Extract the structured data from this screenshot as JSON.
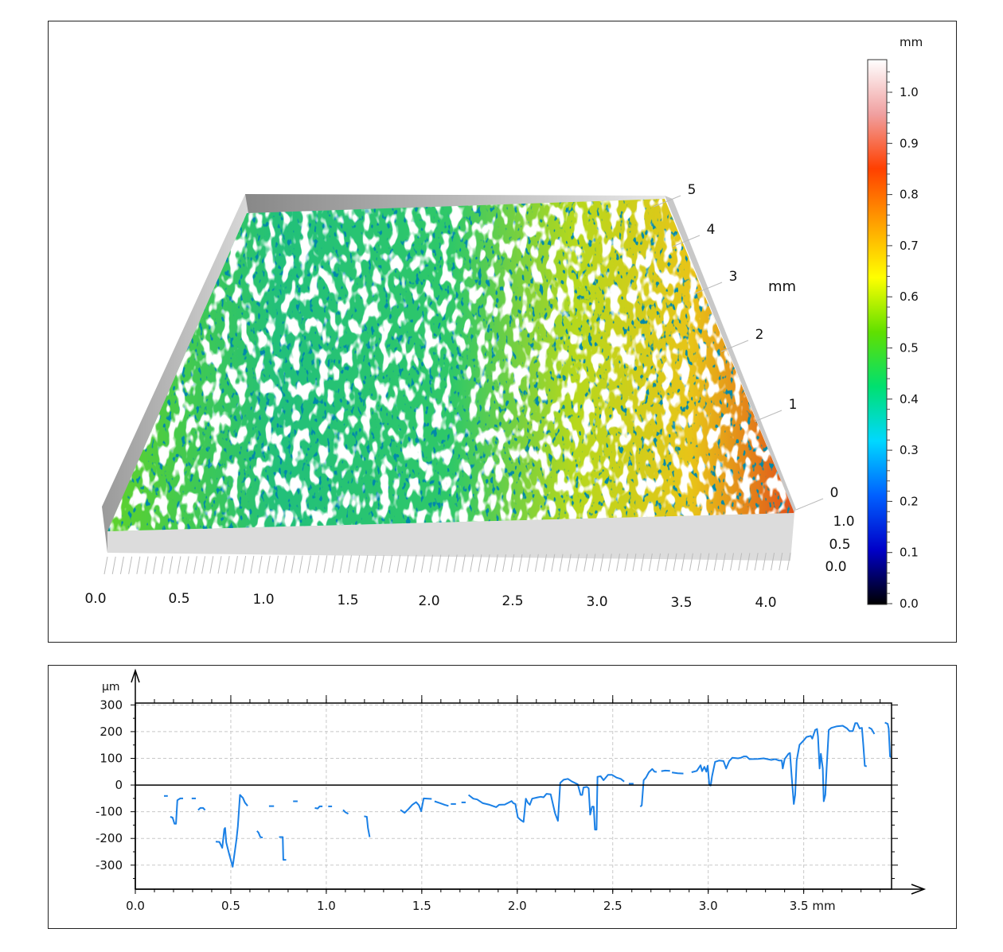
{
  "colors": {
    "profile_line": "#1a80e6",
    "grid": "#c8c8c8",
    "axis": "#000000"
  },
  "chart_data": [
    {
      "type": "surface",
      "x_ticks": [
        "0.0",
        "0.5",
        "1.0",
        "1.5",
        "2.0",
        "2.5",
        "3.0",
        "3.5",
        "4.0"
      ],
      "y_ticks": [
        "0",
        "1",
        "2",
        "3",
        "4",
        "5"
      ],
      "y_unit": "mm",
      "z_ticks": [
        "0.0",
        "0.5",
        "1.0"
      ],
      "colorbar": {
        "unit": "mm",
        "range": [
          0.0,
          1.05
        ],
        "ticks": [
          "0.0",
          "0.1",
          "0.2",
          "0.3",
          "0.4",
          "0.5",
          "0.6",
          "0.7",
          "0.8",
          "0.9",
          "1.0"
        ],
        "colormap": [
          "#000000",
          "#0000c8",
          "#0060ff",
          "#00d8ff",
          "#00e070",
          "#60e000",
          "#ffff00",
          "#ffa000",
          "#ff4000",
          "#f0a0a0",
          "#ffffff"
        ]
      }
    },
    {
      "type": "line",
      "y_unit": "µm",
      "x_unit": "mm",
      "xlim": [
        0,
        3.96
      ],
      "ylim": [
        -390,
        307
      ],
      "grid": true,
      "x_ticks": [
        "0.0",
        "0.5",
        "1.0",
        "1.5",
        "2.0",
        "2.5",
        "3.0",
        "3.5 mm"
      ],
      "y_ticks": [
        "300",
        "200",
        "100",
        "0",
        "-100",
        "-200",
        "-300"
      ],
      "segments": [
        [
          [
            0.15,
            -41
          ],
          [
            0.17,
            -41
          ]
        ],
        [
          [
            0.183,
            -119
          ],
          [
            0.195,
            -122
          ],
          [
            0.205,
            -145
          ],
          [
            0.213,
            -145
          ],
          [
            0.22,
            -57
          ],
          [
            0.235,
            -50
          ],
          [
            0.25,
            -50
          ]
        ],
        [
          [
            0.295,
            -50
          ],
          [
            0.317,
            -50
          ]
        ],
        [
          [
            0.329,
            -94
          ],
          [
            0.34,
            -86
          ],
          [
            0.355,
            -86
          ],
          [
            0.365,
            -94
          ]
        ],
        [
          [
            0.421,
            -212
          ],
          [
            0.44,
            -213
          ],
          [
            0.455,
            -235
          ],
          [
            0.466,
            -165
          ],
          [
            0.47,
            -161
          ],
          [
            0.476,
            -215
          ],
          [
            0.49,
            -255
          ],
          [
            0.51,
            -306
          ],
          [
            0.52,
            -255
          ],
          [
            0.53,
            -203
          ],
          [
            0.537,
            -155
          ],
          [
            0.548,
            -37
          ],
          [
            0.556,
            -43
          ],
          [
            0.563,
            -48
          ],
          [
            0.574,
            -66
          ],
          [
            0.588,
            -78
          ]
        ],
        [
          [
            0.637,
            -172
          ],
          [
            0.645,
            -178
          ],
          [
            0.655,
            -195
          ],
          [
            0.667,
            -197
          ]
        ],
        [
          [
            0.7,
            -79
          ],
          [
            0.726,
            -79
          ]
        ],
        [
          [
            0.753,
            -195
          ],
          [
            0.772,
            -195
          ],
          [
            0.775,
            -280
          ],
          [
            0.79,
            -280
          ]
        ],
        [
          [
            0.826,
            -61
          ],
          [
            0.85,
            -61
          ]
        ],
        [
          [
            0.94,
            -86
          ],
          [
            0.955,
            -88
          ],
          [
            0.965,
            -80
          ],
          [
            0.98,
            -80
          ]
        ],
        [
          [
            1.01,
            -80
          ],
          [
            1.03,
            -80
          ]
        ],
        [
          [
            1.088,
            -93
          ],
          [
            1.1,
            -102
          ],
          [
            1.115,
            -108
          ]
        ],
        [
          [
            1.198,
            -117
          ],
          [
            1.212,
            -119
          ],
          [
            1.218,
            -160
          ],
          [
            1.227,
            -195
          ]
        ],
        [
          [
            1.388,
            -93
          ],
          [
            1.41,
            -104
          ],
          [
            1.43,
            -90
          ],
          [
            1.45,
            -74
          ],
          [
            1.47,
            -64
          ],
          [
            1.485,
            -76
          ],
          [
            1.497,
            -98
          ],
          [
            1.51,
            -50
          ],
          [
            1.552,
            -52
          ]
        ],
        [
          [
            1.567,
            -61
          ],
          [
            1.597,
            -68
          ],
          [
            1.62,
            -74
          ],
          [
            1.64,
            -78
          ]
        ],
        [
          [
            1.652,
            -71
          ],
          [
            1.679,
            -71
          ]
        ],
        [
          [
            1.708,
            -65
          ],
          [
            1.73,
            -65
          ]
        ],
        [
          [
            1.745,
            -37
          ],
          [
            1.77,
            -51
          ],
          [
            1.79,
            -54
          ],
          [
            1.82,
            -68
          ],
          [
            1.855,
            -74
          ],
          [
            1.89,
            -83
          ],
          [
            1.905,
            -74
          ],
          [
            1.935,
            -73
          ],
          [
            1.954,
            -66
          ],
          [
            1.97,
            -60
          ],
          [
            1.98,
            -68
          ],
          [
            1.99,
            -71
          ],
          [
            2.003,
            -121
          ],
          [
            2.018,
            -131
          ],
          [
            2.033,
            -138
          ],
          [
            2.045,
            -51
          ],
          [
            2.055,
            -66
          ],
          [
            2.066,
            -74
          ],
          [
            2.078,
            -51
          ],
          [
            2.108,
            -46
          ],
          [
            2.123,
            -44
          ],
          [
            2.138,
            -46
          ],
          [
            2.153,
            -33
          ],
          [
            2.175,
            -35
          ],
          [
            2.198,
            -106
          ],
          [
            2.213,
            -134
          ],
          [
            2.225,
            8
          ],
          [
            2.243,
            20
          ],
          [
            2.265,
            23
          ],
          [
            2.287,
            13
          ],
          [
            2.317,
            3
          ],
          [
            2.332,
            -37
          ],
          [
            2.34,
            -37
          ],
          [
            2.347,
            -9
          ],
          [
            2.365,
            -7
          ],
          [
            2.374,
            -12
          ],
          [
            2.382,
            -111
          ],
          [
            2.392,
            -81
          ],
          [
            2.4,
            -81
          ],
          [
            2.407,
            -167
          ],
          [
            2.415,
            -167
          ],
          [
            2.42,
            31
          ],
          [
            2.437,
            33
          ],
          [
            2.452,
            18
          ],
          [
            2.475,
            38
          ],
          [
            2.497,
            38
          ],
          [
            2.52,
            28
          ],
          [
            2.542,
            23
          ],
          [
            2.56,
            13
          ]
        ],
        [
          [
            2.584,
            5
          ],
          [
            2.609,
            5
          ]
        ],
        [
          [
            2.644,
            -81
          ],
          [
            2.652,
            -76
          ],
          [
            2.662,
            18
          ],
          [
            2.674,
            28
          ],
          [
            2.689,
            48
          ],
          [
            2.707,
            60
          ],
          [
            2.719,
            50
          ],
          [
            2.73,
            49
          ]
        ],
        [
          [
            2.754,
            52
          ],
          [
            2.775,
            54
          ],
          [
            2.8,
            53
          ]
        ],
        [
          [
            2.81,
            47
          ],
          [
            2.84,
            44
          ],
          [
            2.87,
            43
          ]
        ],
        [
          [
            2.913,
            48
          ],
          [
            2.94,
            53
          ],
          [
            2.96,
            74
          ],
          [
            2.968,
            52
          ],
          [
            2.98,
            68
          ],
          [
            2.99,
            50
          ],
          [
            2.997,
            72
          ],
          [
            3.006,
            0
          ],
          [
            3.013,
            -2
          ],
          [
            3.02,
            33
          ],
          [
            3.036,
            87
          ],
          [
            3.058,
            92
          ],
          [
            3.08,
            90
          ],
          [
            3.094,
            62
          ],
          [
            3.11,
            90
          ],
          [
            3.126,
            102
          ],
          [
            3.156,
            100
          ],
          [
            3.171,
            102
          ],
          [
            3.186,
            107
          ],
          [
            3.2,
            107
          ],
          [
            3.216,
            97
          ],
          [
            3.26,
            98
          ],
          [
            3.29,
            100
          ],
          [
            3.33,
            94
          ],
          [
            3.35,
            97
          ],
          [
            3.37,
            92
          ],
          [
            3.385,
            92
          ],
          [
            3.39,
            62
          ],
          [
            3.4,
            97
          ],
          [
            3.42,
            117
          ],
          [
            3.428,
            120
          ],
          [
            3.437,
            33
          ],
          [
            3.448,
            -71
          ],
          [
            3.455,
            -37
          ],
          [
            3.463,
            92
          ],
          [
            3.478,
            151
          ],
          [
            3.5,
            167
          ],
          [
            3.515,
            180
          ],
          [
            3.537,
            184
          ],
          [
            3.545,
            174
          ],
          [
            3.56,
            206
          ],
          [
            3.57,
            210
          ],
          [
            3.575,
            182
          ],
          [
            3.583,
            62
          ],
          [
            3.59,
            117
          ],
          [
            3.6,
            62
          ],
          [
            3.605,
            -61
          ],
          [
            3.613,
            -37
          ],
          [
            3.62,
            62
          ],
          [
            3.631,
            206
          ],
          [
            3.645,
            214
          ],
          [
            3.674,
            220
          ],
          [
            3.704,
            222
          ],
          [
            3.727,
            212
          ],
          [
            3.74,
            202
          ],
          [
            3.757,
            202
          ],
          [
            3.77,
            232
          ],
          [
            3.78,
            232
          ],
          [
            3.793,
            212
          ],
          [
            3.805,
            214
          ],
          [
            3.812,
            151
          ],
          [
            3.82,
            72
          ],
          [
            3.83,
            70
          ]
        ],
        [
          [
            3.84,
            216
          ],
          [
            3.855,
            210
          ],
          [
            3.87,
            191
          ]
        ],
        [
          [
            3.925,
            234
          ],
          [
            3.94,
            229
          ],
          [
            3.945,
            212
          ],
          [
            3.952,
            107
          ],
          [
            3.96,
            104
          ]
        ]
      ]
    }
  ]
}
